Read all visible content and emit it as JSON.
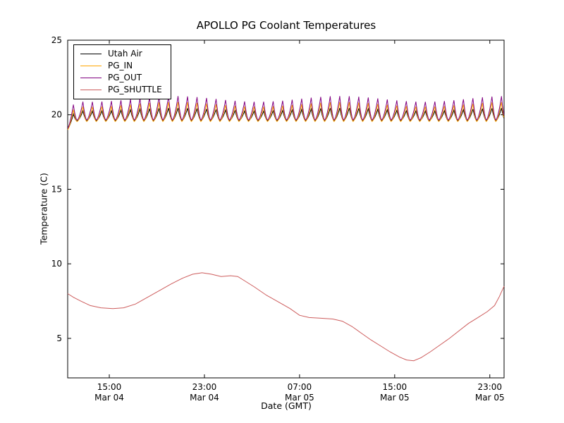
{
  "title": "APOLLO PG Coolant Temperatures",
  "xlabel": "Date (GMT)",
  "ylabel": "Temperature (C)",
  "chart_data": {
    "type": "line",
    "title": "APOLLO PG Coolant Temperatures",
    "xlabel": "Date (GMT)",
    "ylabel": "Temperature (C)",
    "x_unit": "hours since Mar 04 00:00 GMT",
    "xlim": [
      11.5,
      48.2
    ],
    "ylim": [
      2.35,
      25
    ],
    "yticks": [
      5,
      10,
      15,
      20,
      25
    ],
    "xticks": [
      {
        "t": 15,
        "time": "15:00",
        "date": "Mar 04"
      },
      {
        "t": 23,
        "time": "23:00",
        "date": "Mar 04"
      },
      {
        "t": 31,
        "time": "07:00",
        "date": "Mar 05"
      },
      {
        "t": 39,
        "time": "15:00",
        "date": "Mar 05"
      },
      {
        "t": 47,
        "time": "23:00",
        "date": "Mar 05"
      }
    ],
    "grid": false,
    "legend_position": "upper left",
    "oscillation": {
      "period_h": 0.8,
      "rise_frac": 0.6,
      "sharpness": 1.6,
      "amp_mod": {
        "period_h": 14,
        "depth": 0.12,
        "center": 0.88,
        "phase_h": 17
      },
      "start_dip": {
        "until": 12.3,
        "rate": 0.7
      }
    },
    "series": [
      {
        "name": "Utah Air",
        "color": "#000000",
        "style": "sawtooth",
        "trough": 19.6,
        "peak": 20.45
      },
      {
        "name": "PG_IN",
        "color": "#ffa500",
        "style": "sawtooth",
        "trough": 19.55,
        "peak": 20.85
      },
      {
        "name": "PG_OUT",
        "color": "#800080",
        "style": "sawtooth",
        "trough": 19.65,
        "peak": 21.25
      },
      {
        "name": "PG_SHUTTLE",
        "color": "#cd5c5c",
        "style": "points",
        "points": [
          [
            11.5,
            8.0
          ],
          [
            12.0,
            7.75
          ],
          [
            12.6,
            7.5
          ],
          [
            13.4,
            7.2
          ],
          [
            14.3,
            7.05
          ],
          [
            15.3,
            7.0
          ],
          [
            16.2,
            7.05
          ],
          [
            17.2,
            7.3
          ],
          [
            18.2,
            7.75
          ],
          [
            19.2,
            8.2
          ],
          [
            20.2,
            8.65
          ],
          [
            21.2,
            9.05
          ],
          [
            22.0,
            9.3
          ],
          [
            22.8,
            9.4
          ],
          [
            23.6,
            9.3
          ],
          [
            24.4,
            9.15
          ],
          [
            25.2,
            9.2
          ],
          [
            25.8,
            9.15
          ],
          [
            26.4,
            8.85
          ],
          [
            27.2,
            8.45
          ],
          [
            28.2,
            7.9
          ],
          [
            29.2,
            7.45
          ],
          [
            30.2,
            7.0
          ],
          [
            31.0,
            6.55
          ],
          [
            31.8,
            6.4
          ],
          [
            32.8,
            6.35
          ],
          [
            33.8,
            6.3
          ],
          [
            34.6,
            6.15
          ],
          [
            35.4,
            5.8
          ],
          [
            36.2,
            5.35
          ],
          [
            37.0,
            4.9
          ],
          [
            37.8,
            4.5
          ],
          [
            38.6,
            4.1
          ],
          [
            39.4,
            3.75
          ],
          [
            40.0,
            3.55
          ],
          [
            40.6,
            3.5
          ],
          [
            41.2,
            3.7
          ],
          [
            42.0,
            4.1
          ],
          [
            42.8,
            4.55
          ],
          [
            43.6,
            5.0
          ],
          [
            44.4,
            5.5
          ],
          [
            45.2,
            6.0
          ],
          [
            46.0,
            6.4
          ],
          [
            46.8,
            6.8
          ],
          [
            47.4,
            7.2
          ],
          [
            47.8,
            7.8
          ],
          [
            48.2,
            8.5
          ]
        ]
      }
    ]
  }
}
